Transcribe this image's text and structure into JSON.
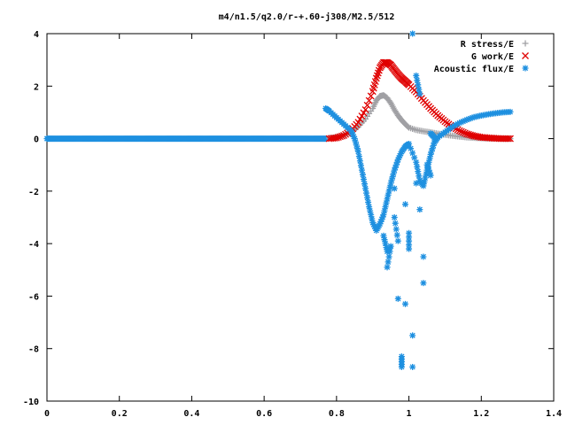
{
  "chart_data": {
    "type": "scatter",
    "title": "m4/n1.5/q2.0/r-+.60-j308/M2.5/512",
    "xlabel": "",
    "ylabel": "",
    "xlim": [
      0,
      1.4
    ],
    "ylim": [
      -10,
      4
    ],
    "x_ticks": [
      0,
      0.2,
      0.4,
      0.6,
      0.8,
      1,
      1.2,
      1.4
    ],
    "x_tick_labels": [
      "0",
      "0.2",
      "0.4",
      "0.6",
      "0.8",
      "1",
      "1.2",
      "1.4"
    ],
    "y_ticks": [
      4,
      2,
      0,
      -2,
      -4,
      -6,
      -8,
      -10
    ],
    "y_tick_labels": [
      "4",
      "2",
      "0",
      "-2",
      "-4",
      "-6",
      "-8",
      "-10"
    ],
    "grid": false,
    "legend_position": "top-right",
    "series": [
      {
        "name": "R stress/E",
        "marker": "plus",
        "color": "#a0a0a4",
        "points": [
          [
            0.78,
            0.02
          ],
          [
            0.8,
            0.05
          ],
          [
            0.82,
            0.12
          ],
          [
            0.84,
            0.25
          ],
          [
            0.86,
            0.45
          ],
          [
            0.88,
            0.75
          ],
          [
            0.9,
            1.15
          ],
          [
            0.91,
            1.45
          ],
          [
            0.92,
            1.62
          ],
          [
            0.93,
            1.65
          ],
          [
            0.94,
            1.55
          ],
          [
            0.95,
            1.35
          ],
          [
            0.96,
            1.1
          ],
          [
            0.97,
            0.88
          ],
          [
            0.98,
            0.7
          ],
          [
            0.99,
            0.55
          ],
          [
            1.0,
            0.42
          ],
          [
            1.02,
            0.33
          ],
          [
            1.04,
            0.28
          ],
          [
            1.06,
            0.24
          ],
          [
            1.08,
            0.19
          ],
          [
            1.1,
            0.15
          ],
          [
            1.12,
            0.11
          ],
          [
            1.14,
            0.08
          ],
          [
            1.16,
            0.05
          ],
          [
            1.18,
            0.03
          ],
          [
            1.2,
            0.02
          ],
          [
            1.22,
            0.01
          ],
          [
            1.24,
            0.01
          ],
          [
            1.26,
            0.0
          ],
          [
            1.28,
            0.0
          ]
        ]
      },
      {
        "name": "G work/E",
        "marker": "cross",
        "color": "#e00000",
        "points": [
          [
            0.78,
            0.0
          ],
          [
            0.8,
            0.03
          ],
          [
            0.82,
            0.12
          ],
          [
            0.84,
            0.3
          ],
          [
            0.86,
            0.62
          ],
          [
            0.88,
            1.1
          ],
          [
            0.9,
            1.8
          ],
          [
            0.91,
            2.3
          ],
          [
            0.92,
            2.7
          ],
          [
            0.93,
            2.9
          ],
          [
            0.94,
            2.9
          ],
          [
            0.95,
            2.8
          ],
          [
            0.96,
            2.62
          ],
          [
            0.97,
            2.45
          ],
          [
            0.98,
            2.3
          ],
          [
            0.99,
            2.18
          ],
          [
            1.0,
            2.05
          ],
          [
            1.02,
            1.78
          ],
          [
            1.04,
            1.45
          ],
          [
            1.06,
            1.15
          ],
          [
            1.08,
            0.88
          ],
          [
            1.1,
            0.65
          ],
          [
            1.12,
            0.45
          ],
          [
            1.14,
            0.3
          ],
          [
            1.16,
            0.18
          ],
          [
            1.18,
            0.1
          ],
          [
            1.2,
            0.05
          ],
          [
            1.22,
            0.03
          ],
          [
            1.24,
            0.01
          ],
          [
            1.26,
            0.0
          ],
          [
            1.28,
            0.0
          ]
        ]
      },
      {
        "name": "Acoustic flux/E",
        "marker": "star",
        "color": "#1e90e0",
        "points": [
          [
            0.77,
            1.15
          ],
          [
            0.78,
            1.05
          ],
          [
            0.8,
            0.8
          ],
          [
            0.82,
            0.55
          ],
          [
            0.84,
            0.3
          ],
          [
            0.85,
            0.0
          ],
          [
            0.86,
            -0.5
          ],
          [
            0.87,
            -1.2
          ],
          [
            0.88,
            -1.9
          ],
          [
            0.89,
            -2.6
          ],
          [
            0.9,
            -3.2
          ],
          [
            0.91,
            -3.5
          ],
          [
            0.92,
            -3.25
          ],
          [
            0.93,
            -2.9
          ],
          [
            0.94,
            -2.3
          ],
          [
            0.95,
            -1.7
          ],
          [
            0.96,
            -1.2
          ],
          [
            0.97,
            -0.8
          ],
          [
            0.98,
            -0.5
          ],
          [
            0.99,
            -0.3
          ],
          [
            1.0,
            -0.2
          ],
          [
            1.02,
            -0.9
          ],
          [
            1.03,
            -1.6
          ],
          [
            1.04,
            -1.8
          ],
          [
            1.05,
            -1.2
          ],
          [
            1.06,
            -0.6
          ],
          [
            1.07,
            -0.15
          ],
          [
            1.08,
            0.05
          ],
          [
            1.1,
            0.25
          ],
          [
            1.12,
            0.45
          ],
          [
            1.14,
            0.6
          ],
          [
            1.16,
            0.72
          ],
          [
            1.18,
            0.82
          ],
          [
            1.2,
            0.88
          ],
          [
            1.22,
            0.93
          ],
          [
            1.24,
            0.97
          ],
          [
            1.26,
            1.0
          ],
          [
            1.28,
            1.02
          ],
          [
            0.93,
            -3.7
          ],
          [
            0.94,
            -4.3
          ],
          [
            0.95,
            -4.1
          ],
          [
            0.94,
            -4.9
          ],
          [
            0.96,
            -3.0
          ],
          [
            0.97,
            -3.9
          ],
          [
            0.97,
            -6.1
          ],
          [
            0.98,
            -8.3
          ],
          [
            0.98,
            -8.7
          ],
          [
            0.99,
            -6.3
          ],
          [
            1.0,
            -4.2
          ],
          [
            1.0,
            -3.6
          ],
          [
            1.01,
            -7.5
          ],
          [
            1.01,
            -8.7
          ],
          [
            1.01,
            4.0
          ],
          [
            1.02,
            2.4
          ],
          [
            1.03,
            1.7
          ],
          [
            1.03,
            -2.7
          ],
          [
            1.04,
            -4.5
          ],
          [
            1.04,
            -5.5
          ],
          [
            1.05,
            -1.0
          ],
          [
            1.06,
            -1.4
          ],
          [
            1.02,
            -1.7
          ],
          [
            0.99,
            -2.5
          ],
          [
            0.96,
            -1.9
          ],
          [
            1.06,
            0.2
          ],
          [
            1.07,
            0.05
          ]
        ]
      }
    ],
    "baseline": {
      "series": "Acoustic flux/E",
      "from": 0,
      "to": 0.77,
      "y": 0
    }
  }
}
